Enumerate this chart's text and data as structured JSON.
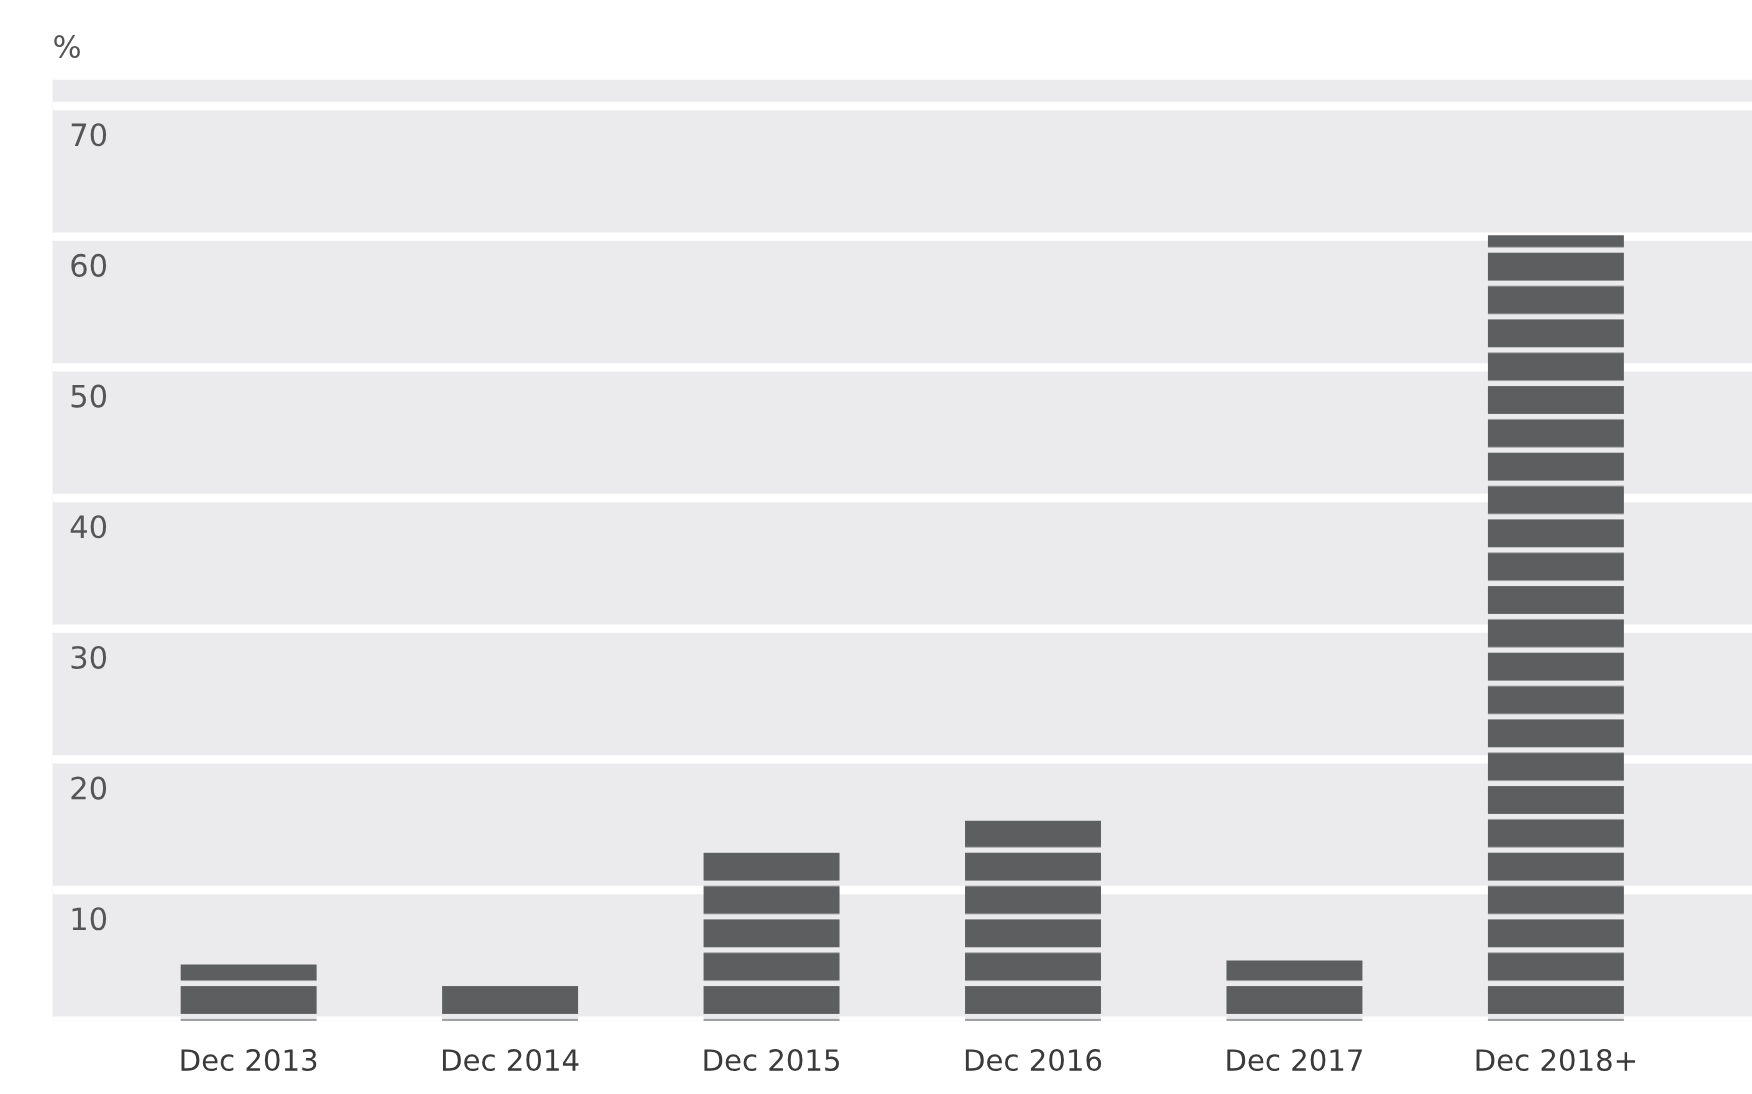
{
  "chart_data": {
    "type": "bar",
    "ylabel": "%",
    "categories": [
      "Dec 2013",
      "Dec 2014",
      "Dec 2015",
      "Dec 2016",
      "Dec 2017",
      "Dec 2018+"
    ],
    "values": [
      4.3,
      2.9,
      12.9,
      15.3,
      4.6,
      60.1
    ],
    "color": "#5d5e60",
    "ylim": [
      0,
      72
    ],
    "yticks": [
      {
        "value": 0,
        "label": null
      },
      10,
      20,
      30,
      40,
      50,
      60,
      70
    ],
    "grid": "y"
  }
}
